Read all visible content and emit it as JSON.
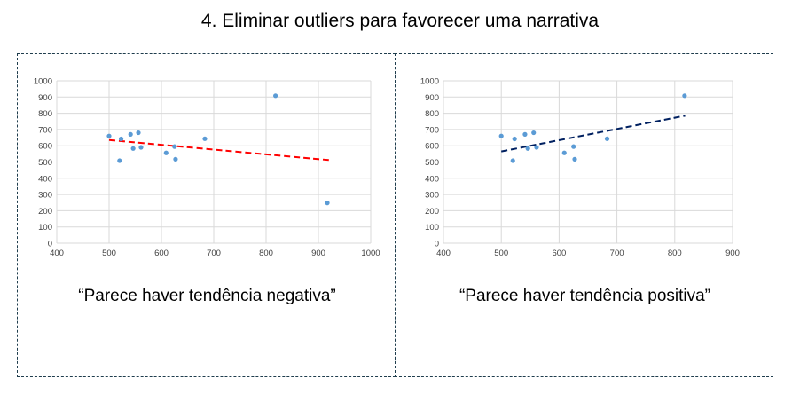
{
  "title": "4. Eliminar outliers para favorecer uma narrativa",
  "captions": {
    "left": "“Parece haver tendência negativa”",
    "right": "“Parece haver tendência positiva”"
  },
  "chart_data": [
    {
      "type": "scatter",
      "title": "",
      "xlabel": "",
      "ylabel": "",
      "xlim": [
        400,
        1000
      ],
      "ylim": [
        0,
        1000
      ],
      "xticks": [
        400,
        500,
        600,
        700,
        800,
        900,
        1000
      ],
      "yticks": [
        0,
        100,
        200,
        300,
        400,
        500,
        600,
        700,
        800,
        900,
        1000
      ],
      "grid": true,
      "legend": "none",
      "point_color": "#5b9bd5",
      "points": [
        {
          "x": 500,
          "y": 660
        },
        {
          "x": 520,
          "y": 508
        },
        {
          "x": 523,
          "y": 642
        },
        {
          "x": 541,
          "y": 670
        },
        {
          "x": 546,
          "y": 583
        },
        {
          "x": 556,
          "y": 680
        },
        {
          "x": 561,
          "y": 590
        },
        {
          "x": 609,
          "y": 556
        },
        {
          "x": 625,
          "y": 595
        },
        {
          "x": 627,
          "y": 517
        },
        {
          "x": 683,
          "y": 643
        },
        {
          "x": 818,
          "y": 908
        },
        {
          "x": 917,
          "y": 248
        }
      ],
      "trendline": {
        "style": "dashed",
        "color": "#ff0000",
        "x": [
          500,
          920
        ],
        "y": [
          635,
          512
        ]
      }
    },
    {
      "type": "scatter",
      "title": "",
      "xlabel": "",
      "ylabel": "",
      "xlim": [
        400,
        900
      ],
      "ylim": [
        0,
        1000
      ],
      "xticks": [
        400,
        500,
        600,
        700,
        800,
        900
      ],
      "yticks": [
        0,
        100,
        200,
        300,
        400,
        500,
        600,
        700,
        800,
        900,
        1000
      ],
      "grid": true,
      "legend": "none",
      "point_color": "#5b9bd5",
      "points": [
        {
          "x": 500,
          "y": 660
        },
        {
          "x": 520,
          "y": 508
        },
        {
          "x": 523,
          "y": 642
        },
        {
          "x": 541,
          "y": 670
        },
        {
          "x": 546,
          "y": 583
        },
        {
          "x": 556,
          "y": 680
        },
        {
          "x": 561,
          "y": 590
        },
        {
          "x": 609,
          "y": 556
        },
        {
          "x": 625,
          "y": 595
        },
        {
          "x": 627,
          "y": 517
        },
        {
          "x": 683,
          "y": 643
        },
        {
          "x": 817,
          "y": 908
        }
      ],
      "trendline": {
        "style": "dashed",
        "color": "#002060",
        "x": [
          500,
          818
        ],
        "y": [
          565,
          785
        ]
      }
    }
  ]
}
